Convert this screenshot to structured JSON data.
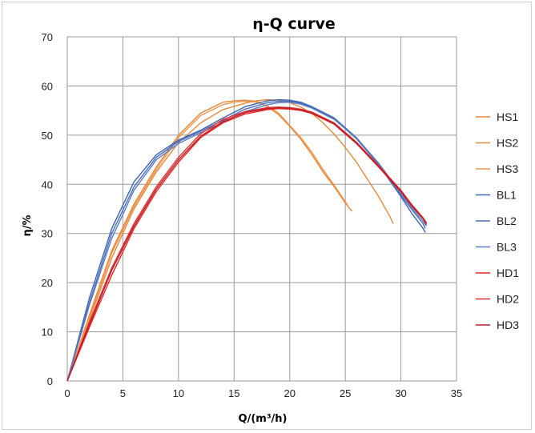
{
  "chart_data": {
    "type": "line",
    "title": "η-Q  curve",
    "xlabel": "Q/(m³/h)",
    "ylabel": "η/%",
    "xlim": [
      0,
      35
    ],
    "ylim": [
      0,
      70
    ],
    "xticks": [
      0,
      5,
      10,
      15,
      20,
      25,
      30,
      35
    ],
    "yticks": [
      0,
      10,
      20,
      30,
      40,
      50,
      60,
      70
    ],
    "grid": true,
    "legend_position": "right",
    "series": [
      {
        "name": "HS1",
        "color": "#e8873a",
        "x": [
          0,
          2,
          4,
          6,
          8,
          10,
          12,
          14,
          15,
          16,
          17,
          18,
          19,
          20,
          21,
          22,
          23,
          24,
          25,
          25.6
        ],
        "y": [
          0,
          13.5,
          26.5,
          36,
          43.5,
          50,
          54.5,
          56.7,
          57,
          57.1,
          56.9,
          55.8,
          54.2,
          51.8,
          49.2,
          46,
          42.5,
          39.5,
          36.2,
          34.5
        ]
      },
      {
        "name": "HS2",
        "color": "#e58a3c",
        "x": [
          0,
          2,
          4,
          6,
          8,
          10,
          12,
          14,
          16,
          17,
          18,
          19,
          20,
          21,
          22,
          23,
          24,
          25,
          26,
          27,
          28,
          29,
          29.3
        ],
        "y": [
          0,
          12.5,
          25,
          35,
          42.5,
          48.5,
          52.5,
          55.2,
          56.5,
          57,
          57.2,
          57.1,
          56.6,
          55.7,
          54.4,
          52.5,
          50.2,
          47.5,
          44.5,
          41,
          37.5,
          33.5,
          32
        ]
      },
      {
        "name": "HS3",
        "color": "#f0954a",
        "x": [
          0,
          2,
          4,
          6,
          8,
          10,
          12,
          14,
          15,
          16,
          17,
          18,
          19,
          20,
          21,
          22,
          23,
          24,
          25,
          25.4
        ],
        "y": [
          0,
          13,
          26,
          35.5,
          43,
          49.5,
          54,
          56.2,
          56.7,
          56.9,
          56.7,
          55.9,
          54.5,
          52,
          49.5,
          46.5,
          43,
          39.8,
          36.5,
          35
        ]
      },
      {
        "name": "BL1",
        "color": "#3e64b0",
        "x": [
          0,
          2,
          4,
          6,
          8,
          10,
          12,
          14,
          16,
          18,
          19,
          20,
          21,
          22,
          24,
          26,
          28,
          30,
          31,
          32,
          32.2
        ],
        "y": [
          0,
          17,
          31,
          40.5,
          46,
          49,
          51,
          53.5,
          55.8,
          57,
          57.2,
          57.1,
          56.7,
          55.8,
          53.5,
          49.5,
          44,
          37.5,
          34,
          31,
          30.2
        ]
      },
      {
        "name": "BL2",
        "color": "#4a6fb8",
        "x": [
          0,
          2,
          4,
          6,
          8,
          10,
          12,
          14,
          16,
          18,
          19,
          20,
          21,
          22,
          24,
          26,
          28,
          30,
          31,
          32,
          32.2
        ],
        "y": [
          0,
          16,
          30,
          39.5,
          45.5,
          48.7,
          50.8,
          53,
          55.3,
          56.6,
          56.9,
          56.9,
          56.5,
          55.7,
          53.3,
          49.3,
          44,
          37.8,
          34.8,
          32,
          31
        ]
      },
      {
        "name": "BL3",
        "color": "#5a7cc2",
        "x": [
          0,
          2,
          4,
          6,
          8,
          10,
          12,
          14,
          16,
          18,
          19,
          20,
          21,
          22,
          24,
          26,
          28,
          30,
          31,
          32,
          32.3
        ],
        "y": [
          0,
          15.5,
          29,
          38.8,
          45,
          48.3,
          50.5,
          52.6,
          54.8,
          56.2,
          56.6,
          56.7,
          56.3,
          55.5,
          53.2,
          49.5,
          44.3,
          38.2,
          35.2,
          32.5,
          31.5
        ]
      },
      {
        "name": "HD1",
        "color": "#ee2222",
        "x": [
          0,
          2,
          4,
          6,
          8,
          10,
          12,
          14,
          16,
          18,
          19,
          20,
          21,
          22,
          24,
          26,
          28,
          30,
          31,
          32,
          32.3
        ],
        "y": [
          0,
          11,
          21.5,
          31,
          38.5,
          44.5,
          49.5,
          52.5,
          54.3,
          55.2,
          55.4,
          55.3,
          55,
          54.4,
          52.2,
          48.3,
          43.5,
          38.5,
          35.5,
          33,
          32
        ]
      },
      {
        "name": "HD2",
        "color": "#e03030",
        "x": [
          0,
          2,
          4,
          6,
          8,
          10,
          12,
          14,
          16,
          18,
          19,
          20,
          21,
          22,
          24,
          26,
          28,
          30,
          31,
          32,
          32.3
        ],
        "y": [
          0,
          12,
          23,
          32,
          39.5,
          45.5,
          50.3,
          53.2,
          54.8,
          55.6,
          55.7,
          55.6,
          55.3,
          54.7,
          52.5,
          48.6,
          43.8,
          38.8,
          35.8,
          33.2,
          32.2
        ]
      },
      {
        "name": "HD3",
        "color": "#b8202a",
        "x": [
          0,
          2,
          4,
          6,
          8,
          10,
          12,
          14,
          16,
          18,
          19,
          20,
          21,
          22,
          24,
          26,
          28,
          30,
          31,
          32,
          32.3
        ],
        "y": [
          0,
          11.5,
          22.5,
          31.5,
          39,
          45,
          49.8,
          52.8,
          54.6,
          55.4,
          55.6,
          55.5,
          55.1,
          54.5,
          52.3,
          48.4,
          43.6,
          38.6,
          35.6,
          33,
          31.8
        ]
      }
    ]
  }
}
